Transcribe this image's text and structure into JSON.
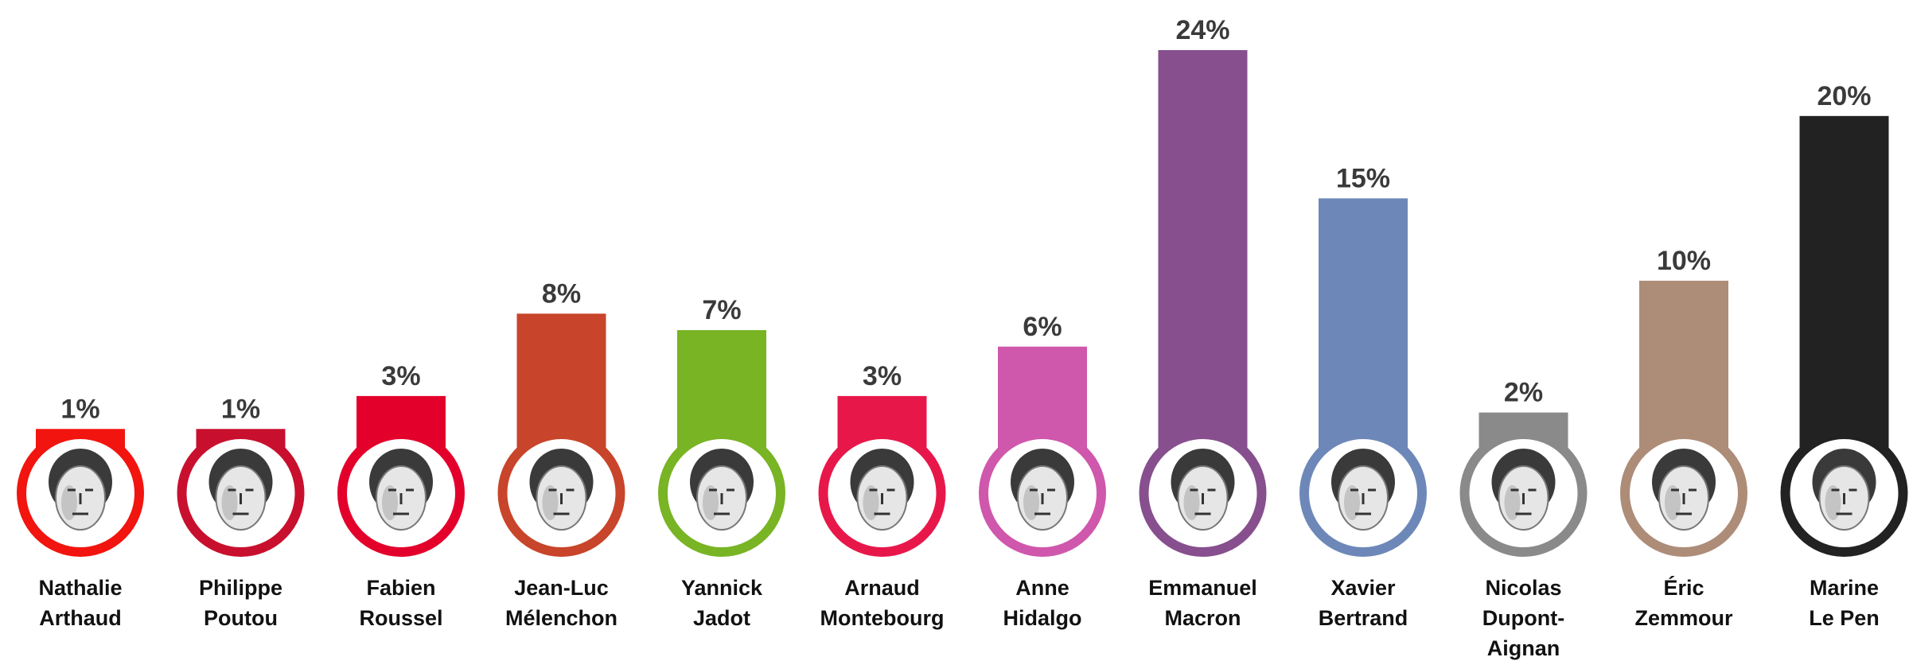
{
  "chart_data": {
    "type": "bar",
    "categories": [
      [
        "Nathalie",
        "Arthaud"
      ],
      [
        "Philippe",
        "Poutou"
      ],
      [
        "Fabien",
        "Roussel"
      ],
      [
        "Jean-Luc",
        "Mélenchon"
      ],
      [
        "Yannick",
        "Jadot"
      ],
      [
        "Arnaud",
        "Montebourg"
      ],
      [
        "Anne",
        "Hidalgo"
      ],
      [
        "Emmanuel",
        "Macron"
      ],
      [
        "Xavier",
        "Bertrand"
      ],
      [
        "Nicolas",
        "Dupont-",
        "Aignan"
      ],
      [
        "Éric",
        "Zemmour"
      ],
      [
        "Marine",
        "Le Pen"
      ]
    ],
    "values": [
      1,
      1,
      3,
      8,
      7,
      3,
      6,
      24,
      15,
      2,
      10,
      20
    ],
    "value_labels": [
      "1%",
      "1%",
      "3%",
      "8%",
      "7%",
      "3%",
      "6%",
      "24%",
      "15%",
      "2%",
      "10%",
      "20%"
    ],
    "colors": [
      "#f2140f",
      "#c8102e",
      "#e3002b",
      "#c8442a",
      "#78b424",
      "#e8174a",
      "#cf57ac",
      "#874f8e",
      "#6d88b8",
      "#8a8a8a",
      "#ad8c78",
      "#222222"
    ]
  }
}
